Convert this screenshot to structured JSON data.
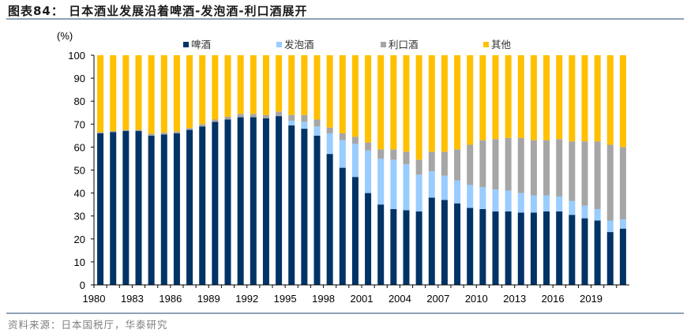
{
  "title": "图表84： 日本酒业发展沿着啤酒-发泡酒-利口酒展开",
  "source": "资料来源：日本国税厅，华泰研究",
  "chart_data": {
    "type": "bar",
    "stacked": true,
    "ylabel": "(%)",
    "ylim": [
      0,
      100
    ],
    "yticks": [
      0,
      10,
      20,
      30,
      40,
      50,
      60,
      70,
      80,
      90,
      100
    ],
    "xtick_labels": [
      "1980",
      "1983",
      "1986",
      "1989",
      "1992",
      "1995",
      "1998",
      "2001",
      "2004",
      "2007",
      "2010",
      "2013",
      "2016",
      "2019"
    ],
    "legend_position": "top",
    "grid": false,
    "categories": [
      1980,
      1981,
      1982,
      1983,
      1984,
      1985,
      1986,
      1987,
      1988,
      1989,
      1990,
      1991,
      1992,
      1993,
      1994,
      1995,
      1996,
      1997,
      1998,
      1999,
      2000,
      2001,
      2002,
      2003,
      2004,
      2005,
      2006,
      2007,
      2008,
      2009,
      2010,
      2011,
      2012,
      2013,
      2014,
      2015,
      2016,
      2017,
      2018,
      2019,
      2020,
      2021
    ],
    "series": [
      {
        "name": "啤酒",
        "color": "#003366",
        "values": [
          66,
          66.5,
          67,
          67,
          65,
          65.5,
          66,
          67.5,
          69,
          71,
          72,
          73,
          73,
          72.5,
          73.5,
          69.5,
          68,
          65,
          57,
          51,
          47,
          40,
          35,
          33,
          32.5,
          32,
          38,
          37,
          35.5,
          33.5,
          33,
          32,
          32,
          31.5,
          31.5,
          32,
          32,
          30.5,
          29,
          28,
          23,
          24.5
        ]
      },
      {
        "name": "发泡酒",
        "color": "#99ccff",
        "values": [
          0,
          0,
          0,
          0,
          0,
          0,
          0,
          0,
          0,
          0,
          0,
          0,
          0,
          0,
          0,
          2,
          3,
          4,
          9,
          12,
          14.5,
          18.5,
          20,
          21.5,
          20,
          16,
          11.5,
          10.5,
          10,
          10,
          9.5,
          9.5,
          9,
          8.5,
          7.5,
          7,
          6.5,
          6,
          5.5,
          5,
          5,
          4
        ]
      },
      {
        "name": "利口酒",
        "color": "#a6a6a6",
        "values": [
          0.5,
          0.5,
          0.5,
          0.5,
          0.8,
          0.8,
          0.8,
          0.8,
          1,
          1,
          1.2,
          1.5,
          1.5,
          1.5,
          2,
          2.5,
          3,
          3,
          2.5,
          3,
          3,
          3.5,
          4,
          4.5,
          5.5,
          6.5,
          8.5,
          10.5,
          13.5,
          17.5,
          20.5,
          22,
          23,
          24,
          24,
          24,
          25,
          26,
          28,
          29.5,
          33,
          31.5
        ]
      },
      {
        "name": "其他",
        "color": "#ffc000",
        "values": [
          33.5,
          33,
          32.5,
          32.5,
          34.2,
          33.7,
          33.2,
          31.7,
          30,
          28,
          26.8,
          25.5,
          25.5,
          26,
          24.5,
          26,
          26,
          28,
          31.5,
          34,
          35.5,
          38,
          41,
          41,
          42,
          45.5,
          42,
          42,
          41,
          39,
          37,
          36.5,
          36,
          36,
          37,
          37,
          36.5,
          37.5,
          37.5,
          37.5,
          39,
          40
        ]
      }
    ]
  }
}
